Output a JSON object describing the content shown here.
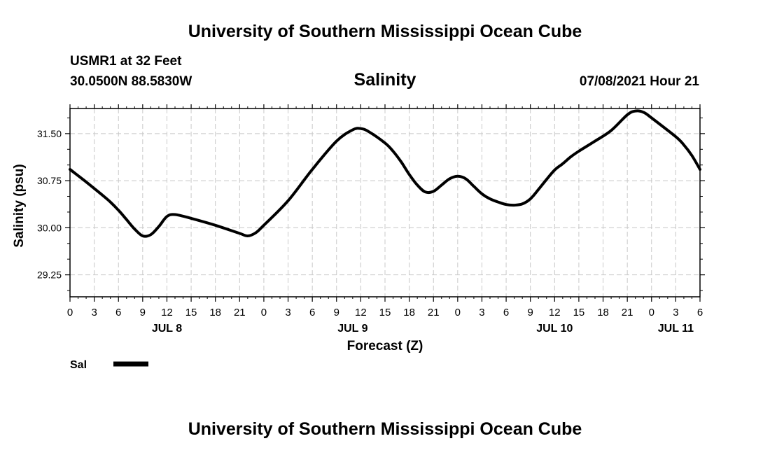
{
  "header": {
    "title": "University of Southern Mississippi Ocean Cube",
    "station": "USMR1 at 32 Feet",
    "coords": "30.0500N  88.5830W",
    "variable": "Salinity",
    "datetime": "07/08/2021 Hour 21"
  },
  "footer": {
    "title": "University of Southern Mississippi Ocean Cube"
  },
  "chart_data": {
    "type": "line",
    "title": "Salinity",
    "xlabel": "Forecast (Z)",
    "ylabel": "Salinity (psu)",
    "xlim": [
      0,
      78
    ],
    "ylim": [
      28.9,
      31.9
    ],
    "yticks": [
      29.25,
      30.0,
      30.75,
      31.5
    ],
    "ytick_labels": [
      "29.25",
      "30.00",
      "30.75",
      "31.50"
    ],
    "xtick_hours": [
      0,
      3,
      6,
      9,
      12,
      15,
      18,
      21,
      24,
      27,
      30,
      33,
      36,
      39,
      42,
      45,
      48,
      51,
      54,
      57,
      60,
      63,
      66,
      69,
      72,
      75,
      78
    ],
    "xtick_labels": [
      "0",
      "3",
      "6",
      "9",
      "12",
      "15",
      "18",
      "21",
      "0",
      "3",
      "6",
      "9",
      "12",
      "15",
      "18",
      "21",
      "0",
      "3",
      "6",
      "9",
      "12",
      "15",
      "18",
      "21",
      "0",
      "3",
      "6"
    ],
    "day_labels": [
      {
        "label": "JUL 8",
        "hour": 12
      },
      {
        "label": "JUL 9",
        "hour": 35
      },
      {
        "label": "JUL 10",
        "hour": 60
      },
      {
        "label": "JUL 11",
        "hour": 75
      }
    ],
    "grid": true,
    "legend": {
      "position": "bottom-left",
      "label": "Sal",
      "color": "#000000"
    },
    "series": [
      {
        "name": "Sal",
        "color": "#000000",
        "x": [
          0,
          2,
          4,
          5,
          6,
          7,
          8,
          9,
          10,
          11,
          12,
          13,
          15,
          18,
          21,
          22,
          23,
          24,
          27,
          30,
          33,
          35,
          36,
          37,
          39,
          40,
          41,
          42,
          43,
          44,
          45,
          46,
          47,
          48,
          49,
          50,
          51,
          52,
          53,
          54,
          55,
          56,
          57,
          58,
          59,
          60,
          61,
          62,
          63,
          65,
          67,
          69,
          70,
          71,
          72,
          75,
          76,
          77,
          78
        ],
        "y": [
          30.93,
          30.73,
          30.52,
          30.41,
          30.28,
          30.13,
          29.98,
          29.87,
          29.89,
          30.02,
          30.18,
          30.21,
          30.15,
          30.04,
          29.91,
          29.87,
          29.92,
          30.04,
          30.43,
          30.93,
          31.38,
          31.56,
          31.58,
          31.53,
          31.35,
          31.22,
          31.05,
          30.85,
          30.68,
          30.57,
          30.58,
          30.68,
          30.78,
          30.82,
          30.78,
          30.66,
          30.54,
          30.46,
          30.41,
          30.37,
          30.36,
          30.38,
          30.46,
          30.61,
          30.77,
          30.92,
          31.02,
          31.13,
          31.22,
          31.38,
          31.55,
          31.8,
          31.86,
          31.84,
          31.75,
          31.45,
          31.32,
          31.15,
          30.93
        ]
      }
    ]
  }
}
